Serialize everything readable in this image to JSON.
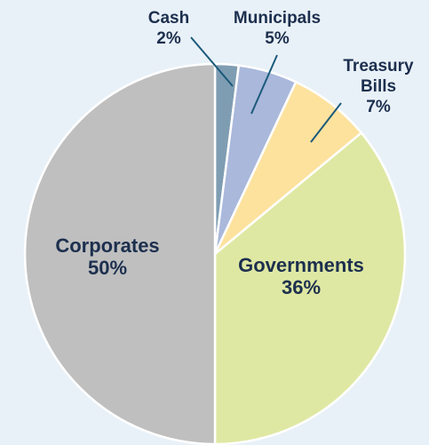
{
  "chart_data": {
    "type": "pie",
    "slices": [
      {
        "label": "Cash",
        "value": 2,
        "value_label": "2%",
        "color": "#7f9db2"
      },
      {
        "label": "Municipals",
        "value": 5,
        "value_label": "5%",
        "color": "#a9b8db"
      },
      {
        "label": "Treasury Bills",
        "label_lines": [
          "Treasury",
          "Bills"
        ],
        "value": 7,
        "value_label": "7%",
        "color": "#fde29e"
      },
      {
        "label": "Governments",
        "value": 36,
        "value_label": "36%",
        "color": "#dfe8a3"
      },
      {
        "label": "Corporates",
        "value": 50,
        "value_label": "50%",
        "color": "#bfbfbf"
      }
    ],
    "start": "top",
    "direction": "clockwise",
    "title": "",
    "label_color": "#1c2f4e",
    "leader_color": "#1a5a7a",
    "separator_color": "#ffffff",
    "background": "#e9f1f8"
  }
}
